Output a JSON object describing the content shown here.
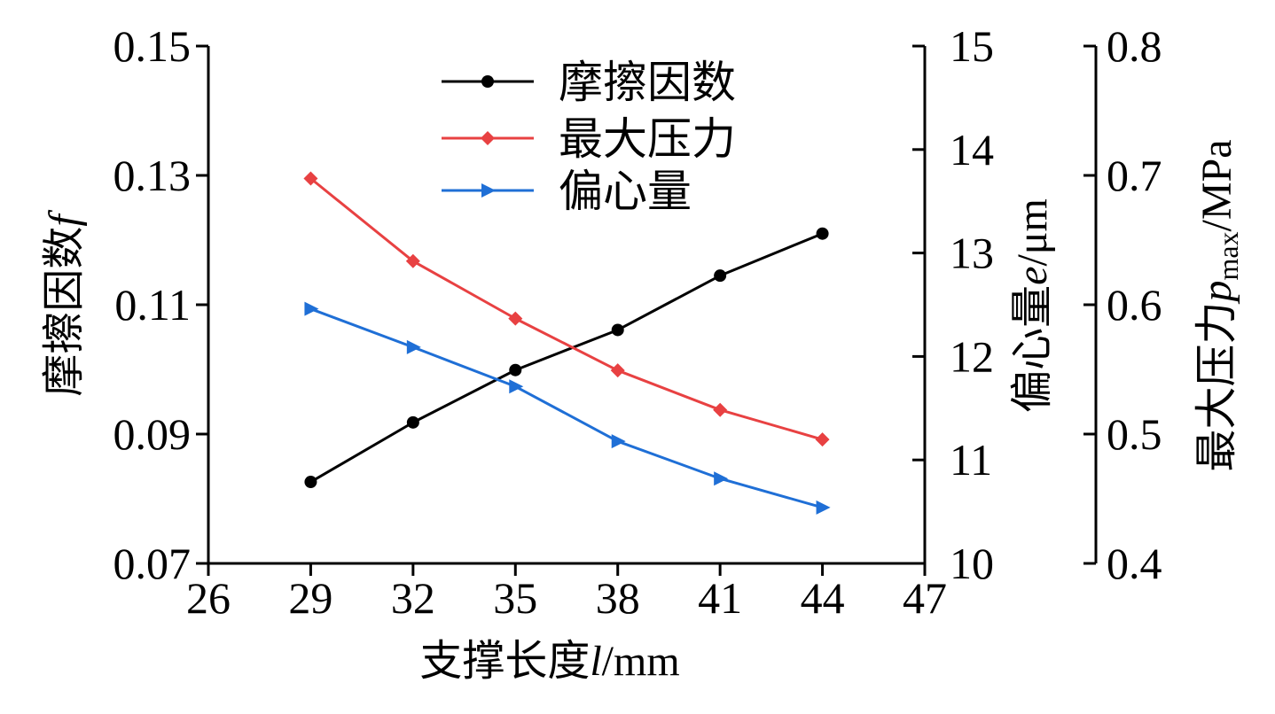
{
  "chart_data": {
    "type": "line",
    "x": [
      29,
      32,
      35,
      38,
      41,
      44
    ],
    "xlim": [
      26,
      47
    ],
    "xticks": [
      "26",
      "29",
      "32",
      "35",
      "38",
      "41",
      "44",
      "47"
    ],
    "xlabel": "支撑长度l/mm",
    "axes": {
      "left": {
        "label": "摩擦因数f",
        "ylim": [
          0.07,
          0.15
        ],
        "ticks": [
          "0.07",
          "0.09",
          "0.11",
          "0.13",
          "0.15"
        ]
      },
      "right1": {
        "label": "偏心量e/μm",
        "ylim": [
          10,
          15
        ],
        "ticks": [
          "10",
          "11",
          "12",
          "13",
          "14",
          "15"
        ]
      },
      "right2": {
        "label": "最大压力p_max/MPa",
        "ylim": [
          0.4,
          0.8
        ],
        "ticks": [
          "0.4",
          "0.5",
          "0.6",
          "0.7",
          "0.8"
        ]
      }
    },
    "series": [
      {
        "name": "摩擦因数",
        "axis": "left",
        "color": "#000000",
        "marker": "circle",
        "values": [
          0.0826,
          0.0918,
          0.0999,
          0.1061,
          0.1145,
          0.121
        ]
      },
      {
        "name": "最大压力",
        "axis": "right2",
        "color": "#e84142",
        "marker": "diamond",
        "values": [
          0.6976,
          0.6337,
          0.5893,
          0.5492,
          0.5187,
          0.4958
        ]
      },
      {
        "name": "偏心量",
        "axis": "right1",
        "color": "#1f6fd6",
        "marker": "triangle-right",
        "values": [
          12.46,
          12.09,
          11.71,
          11.18,
          10.82,
          10.54
        ]
      }
    ],
    "legend_position": "top-center",
    "grid": false
  }
}
